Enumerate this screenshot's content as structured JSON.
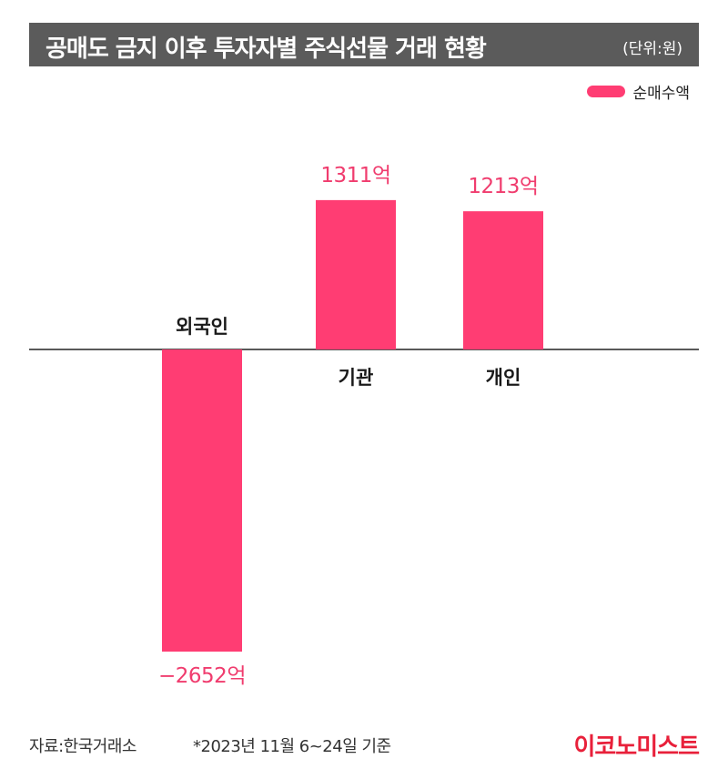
{
  "header": {
    "title": "공매도 금지 이후 투자자별 주식선물 거래 현황",
    "unit": "(단위:원)"
  },
  "legend": {
    "label": "순매수액",
    "color": "#ff3d73"
  },
  "chart_data": {
    "type": "bar",
    "categories": [
      "외국인",
      "기관",
      "개인"
    ],
    "values": [
      -2652,
      1311,
      1213
    ],
    "value_labels": [
      "−2652억",
      "1311억",
      "1213억"
    ],
    "series": [
      {
        "name": "순매수액",
        "values": [
          -2652,
          1311,
          1213
        ]
      }
    ],
    "ylim": [
      -2652,
      1311
    ],
    "grid": false,
    "legend_position": "top-right",
    "bar_color": "#ff3d73",
    "label_color": "#f03c6e"
  },
  "footer": {
    "source": "자료:한국거래소",
    "note": "*2023년 11월 6~24일 기준",
    "logo": "이코노미스트"
  }
}
